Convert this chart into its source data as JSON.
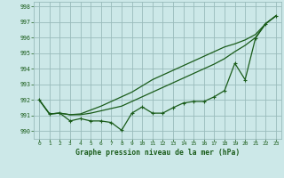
{
  "title": "Graphe pression niveau de la mer (hPa)",
  "bg_color": "#cce8e8",
  "grid_color": "#99bbbb",
  "line_color": "#1a5c1a",
  "xlim": [
    -0.5,
    23.5
  ],
  "ylim": [
    989.5,
    998.3
  ],
  "yticks": [
    990,
    991,
    992,
    993,
    994,
    995,
    996,
    997,
    998
  ],
  "xticks": [
    0,
    1,
    2,
    3,
    4,
    5,
    6,
    7,
    8,
    9,
    10,
    11,
    12,
    13,
    14,
    15,
    16,
    17,
    18,
    19,
    20,
    21,
    22,
    23
  ],
  "series1": [
    992.0,
    991.1,
    991.15,
    990.65,
    990.8,
    990.65,
    990.65,
    990.55,
    990.05,
    991.15,
    991.55,
    991.15,
    991.15,
    991.5,
    991.8,
    991.9,
    991.9,
    992.2,
    992.6,
    994.35,
    993.3,
    995.95,
    996.9,
    997.4
  ],
  "series2": [
    992.0,
    991.1,
    991.15,
    991.05,
    991.05,
    991.15,
    991.3,
    991.45,
    991.6,
    991.9,
    992.2,
    992.5,
    992.8,
    993.1,
    993.4,
    993.7,
    994.0,
    994.3,
    994.65,
    995.1,
    995.5,
    996.0,
    996.9,
    997.4
  ],
  "series3": [
    992.0,
    991.1,
    991.15,
    991.05,
    991.1,
    991.35,
    991.6,
    991.9,
    992.2,
    992.5,
    992.9,
    993.3,
    993.6,
    993.9,
    994.2,
    994.5,
    994.8,
    995.1,
    995.4,
    995.6,
    995.85,
    996.2,
    996.9,
    997.4
  ]
}
